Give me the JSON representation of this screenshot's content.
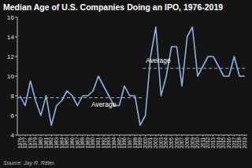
{
  "chart_data": {
    "type": "line",
    "title": "Median Age of U.S. Companies Doing an IPO, 1976-2019",
    "source": "Source: Jay R. Ritter.",
    "categories": [
      "1976",
      "1977",
      "1978",
      "1979",
      "1980",
      "1981",
      "1982",
      "1983",
      "1984",
      "1985",
      "1986",
      "1987",
      "1988",
      "1989",
      "1990",
      "1991",
      "1992",
      "1993",
      "1994",
      "1995",
      "1996",
      "1997",
      "1998",
      "1999",
      "2000",
      "2001",
      "2002",
      "2003",
      "2004",
      "2005",
      "2006",
      "2007",
      "2008",
      "2009",
      "2010",
      "2011",
      "2012",
      "2013",
      "2014",
      "2015",
      "2016",
      "2017",
      "2018",
      "2019"
    ],
    "values": [
      8,
      7,
      9.5,
      7.5,
      6,
      8,
      5,
      7,
      7.5,
      8.5,
      8,
      7,
      8,
      8,
      8.5,
      10,
      9,
      8,
      7,
      7,
      9,
      8,
      8,
      5,
      6,
      12,
      15,
      8,
      10,
      13,
      13,
      9,
      14,
      15,
      10,
      11,
      12,
      12,
      11,
      10,
      10,
      12,
      10,
      10
    ],
    "color": "#8db3e2",
    "line_style": "solid",
    "reference_lines": [
      {
        "label": "Average",
        "value": 7.8,
        "x_range": [
          "1976",
          "1999"
        ]
      },
      {
        "label": "Average",
        "value": 10.8,
        "x_range": [
          "2000",
          "2019"
        ]
      }
    ],
    "ylim": [
      4,
      16
    ],
    "yticks": [
      4,
      6,
      8,
      10,
      12,
      14,
      16
    ],
    "grid": false
  }
}
